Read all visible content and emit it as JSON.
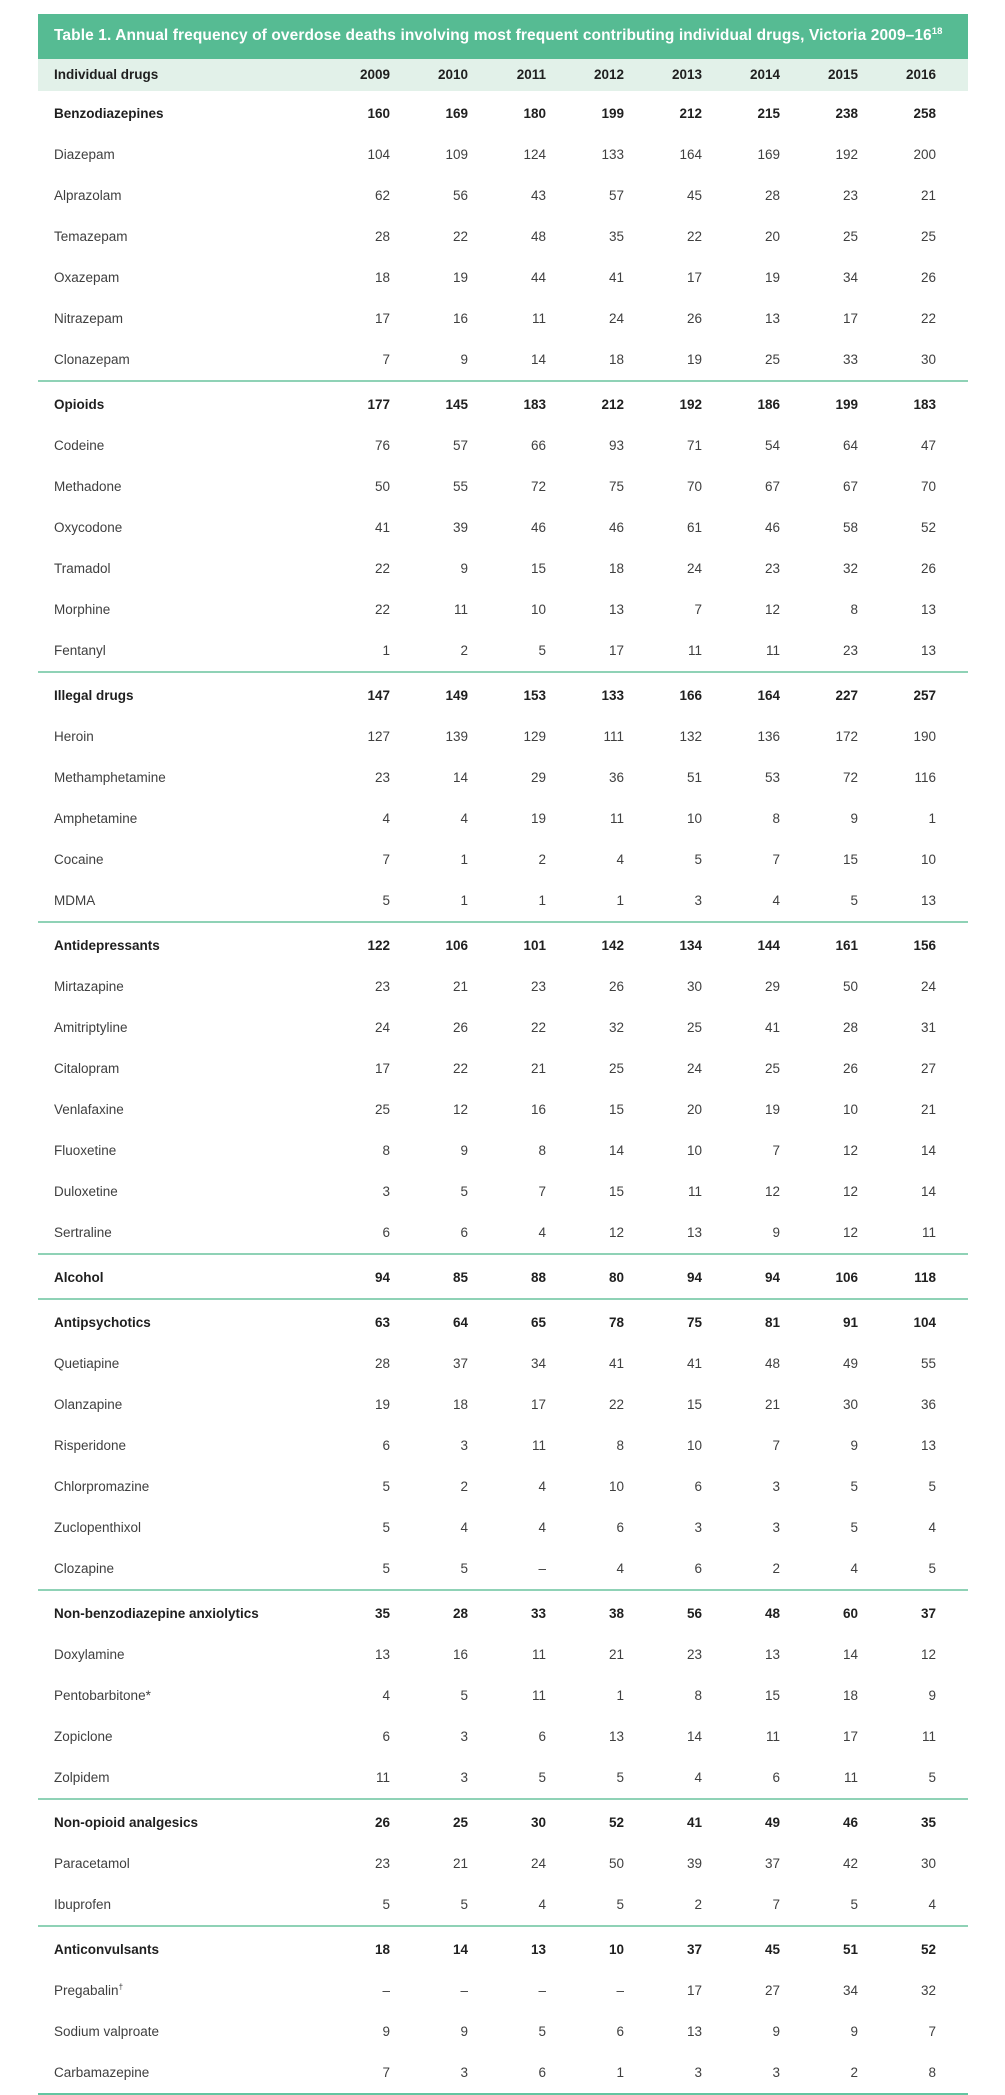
{
  "table": {
    "title": "Table 1. Annual frequency of overdose deaths involving most frequent contributing individual drugs, Victoria 2009–16",
    "title_reference": "18",
    "first_column_header": "Individual drugs",
    "year_columns": [
      "2009",
      "2010",
      "2011",
      "2012",
      "2013",
      "2014",
      "2015",
      "2016"
    ],
    "groups": [
      {
        "label": "Benzodiazepines",
        "values": [
          "160",
          "169",
          "180",
          "199",
          "212",
          "215",
          "238",
          "258"
        ],
        "rows": [
          {
            "label": "Diazepam",
            "values": [
              "104",
              "109",
              "124",
              "133",
              "164",
              "169",
              "192",
              "200"
            ]
          },
          {
            "label": "Alprazolam",
            "values": [
              "62",
              "56",
              "43",
              "57",
              "45",
              "28",
              "23",
              "21"
            ]
          },
          {
            "label": "Temazepam",
            "values": [
              "28",
              "22",
              "48",
              "35",
              "22",
              "20",
              "25",
              "25"
            ]
          },
          {
            "label": "Oxazepam",
            "values": [
              "18",
              "19",
              "44",
              "41",
              "17",
              "19",
              "34",
              "26"
            ]
          },
          {
            "label": "Nitrazepam",
            "values": [
              "17",
              "16",
              "11",
              "24",
              "26",
              "13",
              "17",
              "22"
            ]
          },
          {
            "label": "Clonazepam",
            "values": [
              "7",
              "9",
              "14",
              "18",
              "19",
              "25",
              "33",
              "30"
            ]
          }
        ]
      },
      {
        "label": "Opioids",
        "values": [
          "177",
          "145",
          "183",
          "212",
          "192",
          "186",
          "199",
          "183"
        ],
        "rows": [
          {
            "label": "Codeine",
            "values": [
              "76",
              "57",
              "66",
              "93",
              "71",
              "54",
              "64",
              "47"
            ]
          },
          {
            "label": "Methadone",
            "values": [
              "50",
              "55",
              "72",
              "75",
              "70",
              "67",
              "67",
              "70"
            ]
          },
          {
            "label": "Oxycodone",
            "values": [
              "41",
              "39",
              "46",
              "46",
              "61",
              "46",
              "58",
              "52"
            ]
          },
          {
            "label": "Tramadol",
            "values": [
              "22",
              "9",
              "15",
              "18",
              "24",
              "23",
              "32",
              "26"
            ]
          },
          {
            "label": "Morphine",
            "values": [
              "22",
              "11",
              "10",
              "13",
              "7",
              "12",
              "8",
              "13"
            ]
          },
          {
            "label": "Fentanyl",
            "values": [
              "1",
              "2",
              "5",
              "17",
              "11",
              "11",
              "23",
              "13"
            ]
          }
        ]
      },
      {
        "label": "Illegal drugs",
        "values": [
          "147",
          "149",
          "153",
          "133",
          "166",
          "164",
          "227",
          "257"
        ],
        "rows": [
          {
            "label": "Heroin",
            "values": [
              "127",
              "139",
              "129",
              "111",
              "132",
              "136",
              "172",
              "190"
            ]
          },
          {
            "label": "Methamphetamine",
            "values": [
              "23",
              "14",
              "29",
              "36",
              "51",
              "53",
              "72",
              "116"
            ]
          },
          {
            "label": "Amphetamine",
            "values": [
              "4",
              "4",
              "19",
              "11",
              "10",
              "8",
              "9",
              "1"
            ]
          },
          {
            "label": "Cocaine",
            "values": [
              "7",
              "1",
              "2",
              "4",
              "5",
              "7",
              "15",
              "10"
            ]
          },
          {
            "label": "MDMA",
            "values": [
              "5",
              "1",
              "1",
              "1",
              "3",
              "4",
              "5",
              "13"
            ]
          }
        ]
      },
      {
        "label": "Antidepressants",
        "values": [
          "122",
          "106",
          "101",
          "142",
          "134",
          "144",
          "161",
          "156"
        ],
        "rows": [
          {
            "label": "Mirtazapine",
            "values": [
              "23",
              "21",
              "23",
              "26",
              "30",
              "29",
              "50",
              "24"
            ]
          },
          {
            "label": "Amitriptyline",
            "values": [
              "24",
              "26",
              "22",
              "32",
              "25",
              "41",
              "28",
              "31"
            ]
          },
          {
            "label": "Citalopram",
            "values": [
              "17",
              "22",
              "21",
              "25",
              "24",
              "25",
              "26",
              "27"
            ]
          },
          {
            "label": "Venlafaxine",
            "values": [
              "25",
              "12",
              "16",
              "15",
              "20",
              "19",
              "10",
              "21"
            ]
          },
          {
            "label": "Fluoxetine",
            "values": [
              "8",
              "9",
              "8",
              "14",
              "10",
              "7",
              "12",
              "14"
            ]
          },
          {
            "label": "Duloxetine",
            "values": [
              "3",
              "5",
              "7",
              "15",
              "11",
              "12",
              "12",
              "14"
            ]
          },
          {
            "label": "Sertraline",
            "values": [
              "6",
              "6",
              "4",
              "12",
              "13",
              "9",
              "12",
              "11"
            ]
          }
        ]
      },
      {
        "label": "Alcohol",
        "values": [
          "94",
          "85",
          "88",
          "80",
          "94",
          "94",
          "106",
          "118"
        ],
        "rows": []
      },
      {
        "label": "Antipsychotics",
        "values": [
          "63",
          "64",
          "65",
          "78",
          "75",
          "81",
          "91",
          "104"
        ],
        "rows": [
          {
            "label": "Quetiapine",
            "values": [
              "28",
              "37",
              "34",
              "41",
              "41",
              "48",
              "49",
              "55"
            ]
          },
          {
            "label": "Olanzapine",
            "values": [
              "19",
              "18",
              "17",
              "22",
              "15",
              "21",
              "30",
              "36"
            ]
          },
          {
            "label": "Risperidone",
            "values": [
              "6",
              "3",
              "11",
              "8",
              "10",
              "7",
              "9",
              "13"
            ]
          },
          {
            "label": "Chlorpromazine",
            "values": [
              "5",
              "2",
              "4",
              "10",
              "6",
              "3",
              "5",
              "5"
            ]
          },
          {
            "label": "Zuclopenthixol",
            "values": [
              "5",
              "4",
              "4",
              "6",
              "3",
              "3",
              "5",
              "4"
            ]
          },
          {
            "label": "Clozapine",
            "values": [
              "5",
              "5",
              "–",
              "4",
              "6",
              "2",
              "4",
              "5"
            ]
          }
        ]
      },
      {
        "label": "Non-benzodiazepine anxiolytics",
        "values": [
          "35",
          "28",
          "33",
          "38",
          "56",
          "48",
          "60",
          "37"
        ],
        "rows": [
          {
            "label": "Doxylamine",
            "values": [
              "13",
              "16",
              "11",
              "21",
              "23",
              "13",
              "14",
              "12"
            ]
          },
          {
            "label": "Pentobarbitone*",
            "values": [
              "4",
              "5",
              "11",
              "1",
              "8",
              "15",
              "18",
              "9"
            ]
          },
          {
            "label": "Zopiclone",
            "values": [
              "6",
              "3",
              "6",
              "13",
              "14",
              "11",
              "17",
              "11"
            ]
          },
          {
            "label": "Zolpidem",
            "values": [
              "11",
              "3",
              "5",
              "5",
              "4",
              "6",
              "11",
              "5"
            ]
          }
        ]
      },
      {
        "label": "Non-opioid analgesics",
        "values": [
          "26",
          "25",
          "30",
          "52",
          "41",
          "49",
          "46",
          "35"
        ],
        "rows": [
          {
            "label": "Paracetamol",
            "values": [
              "23",
              "21",
              "24",
              "50",
              "39",
              "37",
              "42",
              "30"
            ]
          },
          {
            "label": "Ibuprofen",
            "values": [
              "5",
              "5",
              "4",
              "5",
              "2",
              "7",
              "5",
              "4"
            ]
          }
        ]
      },
      {
        "label": "Anticonvulsants",
        "values": [
          "18",
          "14",
          "13",
          "10",
          "37",
          "45",
          "51",
          "52"
        ],
        "rows": [
          {
            "label": "Pregabalin†",
            "values": [
              "–",
              "–",
              "–",
              "–",
              "17",
              "27",
              "34",
              "32"
            ]
          },
          {
            "label": "Sodium valproate",
            "values": [
              "9",
              "9",
              "5",
              "6",
              "13",
              "9",
              "9",
              "7"
            ]
          },
          {
            "label": "Carbamazepine",
            "values": [
              "7",
              "3",
              "6",
              "1",
              "3",
              "3",
              "2",
              "8"
            ]
          }
        ]
      }
    ]
  },
  "colors": {
    "title_bar_bg": "#56bb93",
    "column_header_bg": "#e2f1e9",
    "group_separator": "#8fd2b6",
    "table_bottom_border": "#63c5a1"
  }
}
